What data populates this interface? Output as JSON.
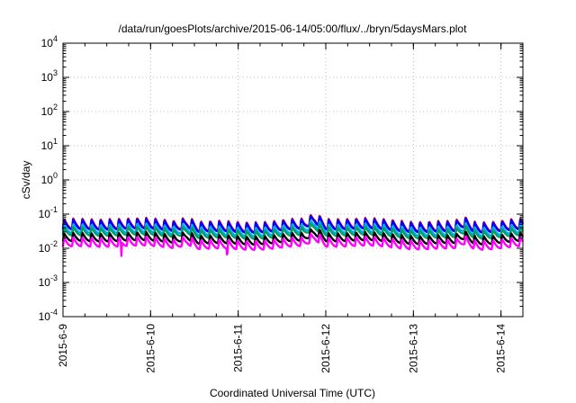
{
  "chart_data": {
    "type": "line",
    "title": "/data/run/goesPlots/archive/2015-06-14/05:00/flux/../bryn/5daysMars.plot",
    "xlabel": "Coordinated Universal Time (UTC)",
    "ylabel": "cSv/day",
    "yscale": "log",
    "ylim": [
      0.0001,
      10000
    ],
    "xlim": [
      "2015-06-09T00:00",
      "2015-06-14T06:00"
    ],
    "y_ticks": [
      {
        "base": "10",
        "exp": "-4",
        "value": 0.0001
      },
      {
        "base": "10",
        "exp": "-3",
        "value": 0.001
      },
      {
        "base": "10",
        "exp": "-2",
        "value": 0.01
      },
      {
        "base": "10",
        "exp": "-1",
        "value": 0.1
      },
      {
        "base": "10",
        "exp": "0",
        "value": 1
      },
      {
        "base": "10",
        "exp": "1",
        "value": 10
      },
      {
        "base": "10",
        "exp": "2",
        "value": 100
      },
      {
        "base": "10",
        "exp": "3",
        "value": 1000
      },
      {
        "base": "10",
        "exp": "4",
        "value": 10000
      }
    ],
    "x_ticks": [
      {
        "label": "2015-6-9",
        "value": "2015-06-09T00:00"
      },
      {
        "label": "2015-6-10",
        "value": "2015-06-10T00:00"
      },
      {
        "label": "2015-6-11",
        "value": "2015-06-11T00:00"
      },
      {
        "label": "2015-6-12",
        "value": "2015-06-12T00:00"
      },
      {
        "label": "2015-6-13",
        "value": "2015-06-13T00:00"
      },
      {
        "label": "2015-6-14",
        "value": "2015-06-14T00:00"
      }
    ],
    "grid": true,
    "legend": "none",
    "cycle_hours": 2.5,
    "series": [
      {
        "color": "#ff0000",
        "peak": 0.068,
        "trough": 0.035
      },
      {
        "color": "#0000ff",
        "peak": 0.064,
        "trough": 0.033
      },
      {
        "color": "#00aaff",
        "peak": 0.046,
        "trough": 0.026
      },
      {
        "color": "#00a060",
        "peak": 0.038,
        "trough": 0.022
      },
      {
        "color": "#000000",
        "peak": 0.026,
        "trough": 0.015
      },
      {
        "color": "#ff00ff",
        "peak": 0.019,
        "trough": 0.0105
      }
    ],
    "spikes": [
      {
        "x": "2015-06-10T10:00",
        "factor": 1.35
      },
      {
        "x": "2015-06-11T21:00",
        "factor": 1.45
      },
      {
        "x": "2015-06-13T14:00",
        "factor": 1.4
      }
    ],
    "dips": [
      {
        "x": "2015-06-09T16:00",
        "value": 0.006
      },
      {
        "x": "2015-06-10T21:00",
        "value": 0.0045
      }
    ]
  }
}
